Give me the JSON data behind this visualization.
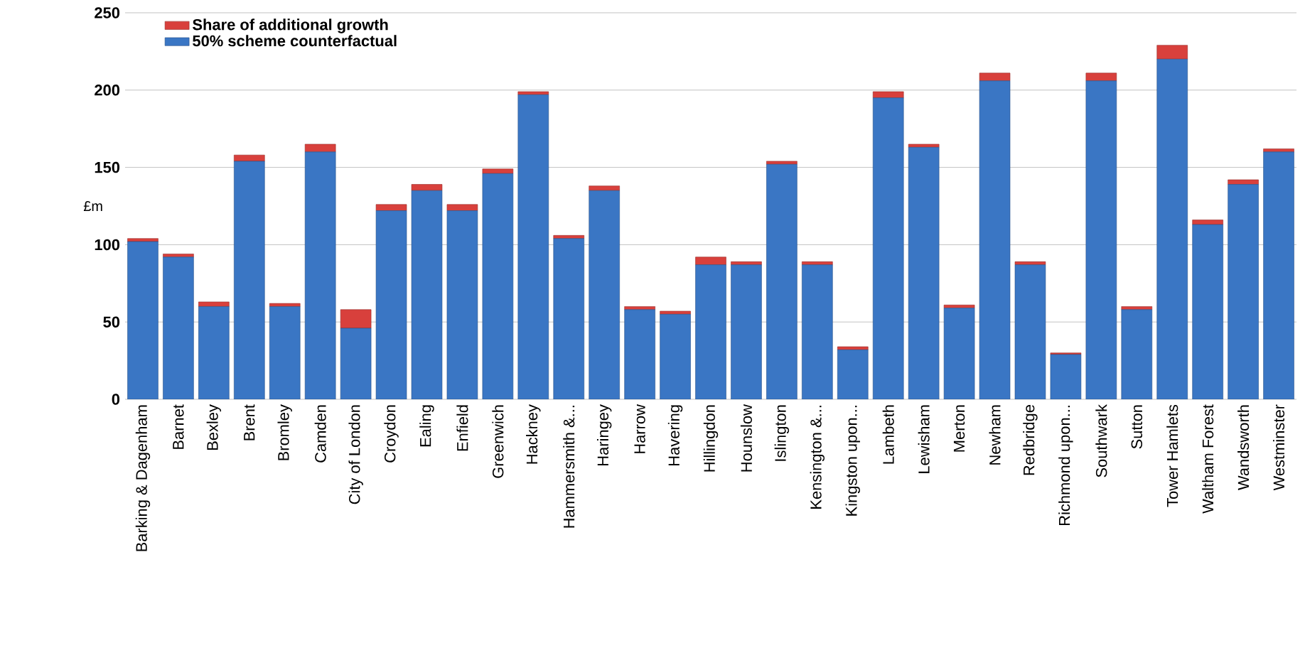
{
  "chart_data": {
    "type": "bar",
    "stacked": true,
    "ylabel": "£m",
    "categories": [
      "Barking & Dagenham",
      "Barnet",
      "Bexley",
      "Brent",
      "Bromley",
      "Camden",
      "City of London",
      "Croydon",
      "Ealing",
      "Enfield",
      "Greenwich",
      "Hackney",
      "Hammersmith &...",
      "Haringey",
      "Harrow",
      "Havering",
      "Hillingdon",
      "Hounslow",
      "Islington",
      "Kensington &...",
      "Kingston upon...",
      "Lambeth",
      "Lewisham",
      "Merton",
      "Newham",
      "Redbridge",
      "Richmond upon...",
      "Southwark",
      "Sutton",
      "Tower Hamlets",
      "Waltham Forest",
      "Wandsworth",
      "Westminster"
    ],
    "series": [
      {
        "name": "50% scheme counterfactual",
        "color": "#3a76c4",
        "values": [
          102,
          92,
          60,
          154,
          60,
          160,
          46,
          122,
          135,
          122,
          146,
          197,
          104,
          135,
          58,
          55,
          87,
          87,
          152,
          87,
          32,
          195,
          163,
          59,
          206,
          87,
          29,
          206,
          58,
          220,
          113,
          139,
          160
        ]
      },
      {
        "name": "Share of additional growth",
        "color": "#d8403c",
        "values": [
          2,
          2,
          3,
          4,
          2,
          5,
          12,
          4,
          4,
          4,
          3,
          2,
          2,
          3,
          2,
          2,
          5,
          2,
          2,
          2,
          2,
          4,
          2,
          2,
          5,
          2,
          1,
          5,
          2,
          9,
          3,
          3,
          2
        ]
      }
    ],
    "ylim": [
      0,
      250
    ],
    "yticks": [
      0,
      50,
      100,
      150,
      200,
      250
    ],
    "grid": "y",
    "legend": "top left"
  }
}
